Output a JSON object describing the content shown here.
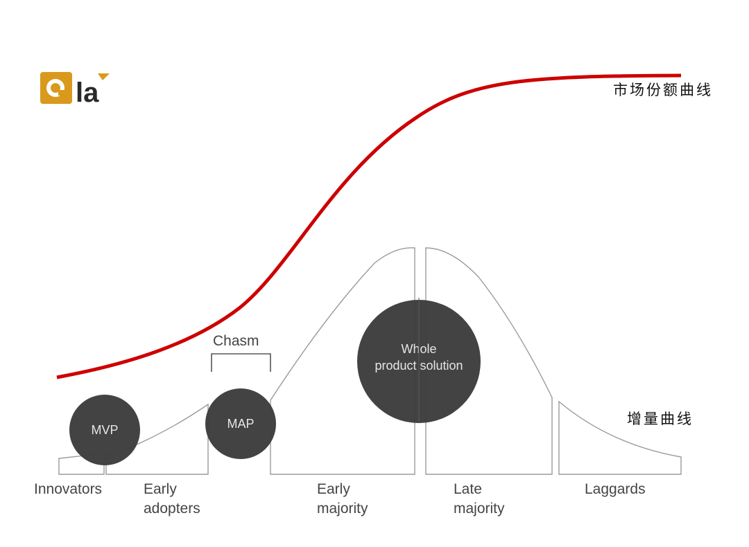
{
  "logo": {
    "text": "la"
  },
  "labels": {
    "market_share_curve": "市场份额曲线",
    "incremental_curve": "增量曲线",
    "chasm": "Chasm"
  },
  "segments": [
    {
      "id": "innovators",
      "lines": [
        "Innovators"
      ]
    },
    {
      "id": "early-adopters",
      "lines": [
        "Early",
        "adopters"
      ]
    },
    {
      "id": "early-majority",
      "lines": [
        "Early",
        "majority"
      ]
    },
    {
      "id": "late-majority",
      "lines": [
        "Late",
        "majority"
      ]
    },
    {
      "id": "laggards",
      "lines": [
        "Laggards"
      ]
    }
  ],
  "circles": {
    "mvp": "MVP",
    "map": "MAP",
    "whole_product": [
      "Whole",
      "product solution"
    ]
  },
  "colors": {
    "market_curve": "#cc0000",
    "bell_outline": "#9a9a9a",
    "circle_fill": "#3d3d3d",
    "logo_gold": "#d99a1c"
  }
}
